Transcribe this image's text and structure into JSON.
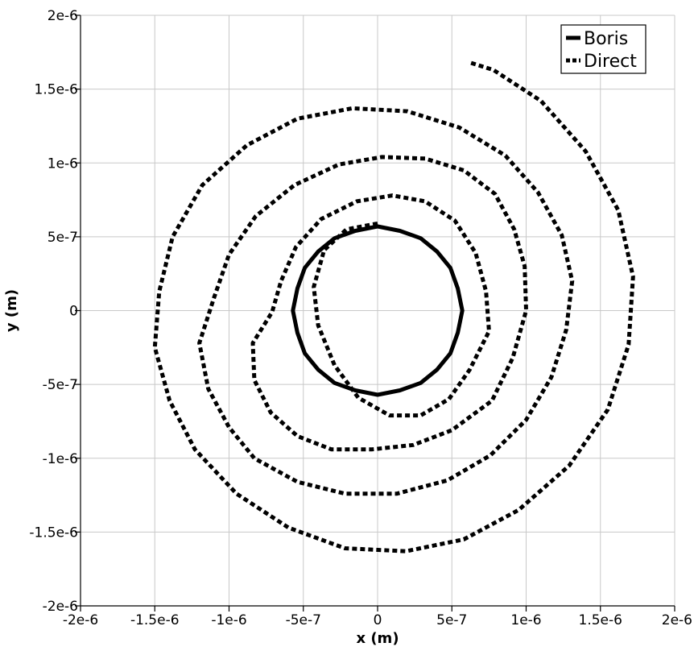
{
  "chart_data": {
    "type": "line",
    "xlabel": "x (m)",
    "ylabel": "y (m)",
    "xlim": [
      -2e-06,
      2e-06
    ],
    "ylim": [
      -2e-06,
      2e-06
    ],
    "grid": true,
    "legend_position": "top-right",
    "x_ticks": [
      -2e-06,
      -1.5e-06,
      -1e-06,
      -5e-07,
      0,
      5e-07,
      1e-06,
      1.5e-06,
      2e-06
    ],
    "x_tick_labels": [
      "-2e-6",
      "-1.5e-6",
      "-1e-6",
      "-5e-7",
      "0",
      "5e-7",
      "1e-6",
      "1.5e-6",
      "2e-6"
    ],
    "y_ticks": [
      -2e-06,
      -1.5e-06,
      -1e-06,
      -5e-07,
      0,
      5e-07,
      1e-06,
      1.5e-06,
      2e-06
    ],
    "y_tick_labels": [
      "-2e-6",
      "-1.5e-6",
      "-1e-6",
      "-5e-7",
      "0",
      "5e-7",
      "1e-6",
      "1.5e-6",
      "2e-6"
    ],
    "series": [
      {
        "name": "Boris",
        "style": "solid",
        "color": "#000000",
        "x": [
          5.7e-07,
          5.4e-07,
          4.9e-07,
          4e-07,
          2.9e-07,
          1.5e-07,
          0,
          -1.5e-07,
          -2.9e-07,
          -4e-07,
          -4.9e-07,
          -5.4e-07,
          -5.7e-07,
          -5.4e-07,
          -4.9e-07,
          -4e-07,
          -2.9e-07,
          -1.5e-07,
          0,
          1.5e-07,
          2.9e-07,
          4e-07,
          4.9e-07,
          5.4e-07,
          5.7e-07
        ],
        "y": [
          0,
          1.5e-07,
          2.9e-07,
          4e-07,
          4.9e-07,
          5.4e-07,
          5.7e-07,
          5.4e-07,
          4.9e-07,
          4e-07,
          2.9e-07,
          1.5e-07,
          0,
          -1.5e-07,
          -2.9e-07,
          -4e-07,
          -4.9e-07,
          -5.4e-07,
          -5.7e-07,
          -5.4e-07,
          -4.9e-07,
          -4e-07,
          -2.9e-07,
          -1.5e-07,
          0
        ]
      },
      {
        "name": "Direct",
        "style": "dashed",
        "color": "#000000",
        "x": [
          0,
          -2.1e-07,
          -3.6e-07,
          -4.3e-07,
          -4e-07,
          -2.9e-07,
          -1.3e-07,
          8e-08,
          2.9e-07,
          4.8e-07,
          6.2e-07,
          7.5e-07,
          7.3e-07,
          6.6e-07,
          5.2e-07,
          3.2e-07,
          1e-07,
          -1.4e-07,
          -3.8e-07,
          -5.5e-07,
          -6.5e-07,
          -7.1e-07,
          -8.4e-07,
          -8.3e-07,
          -7.2e-07,
          -5.4e-07,
          -3.1e-07,
          -4e-08,
          2.4e-07,
          5e-07,
          7.7e-07,
          9.1e-07,
          1e-06,
          9.9e-07,
          9.2e-07,
          7.9e-07,
          5.8e-07,
          3.2e-07,
          3e-08,
          -2.6e-07,
          -5.6e-07,
          -8.2e-07,
          -1e-06,
          -1.1e-06,
          -1.2e-06,
          -1.14e-06,
          -1e-06,
          -8.3e-07,
          -5.4e-07,
          -2.2e-07,
          1.3e-07,
          4.7e-07,
          7.6e-07,
          1e-06,
          1.17e-06,
          1.27e-06,
          1.31e-06,
          1.24e-06,
          1.08e-06,
          8.6e-07,
          5.5e-07,
          2e-07,
          -1.7e-07,
          -5.4e-07,
          -8.8e-07,
          -1.18e-06,
          -1.38e-06,
          -1.47e-06,
          -1.5e-06,
          -1.4e-06,
          -1.23e-06,
          -9.5e-07,
          -6e-07,
          -2.2e-07,
          1.9e-07,
          5.8e-07,
          9.5e-07,
          1.29e-06,
          1.55e-06,
          1.69e-06,
          1.72e-06,
          1.62e-06,
          1.4e-06,
          1.1e-06,
          7.8e-07,
          6.2e-07
        ],
        "y": [
          5.9e-07,
          5.5e-07,
          4.1e-07,
          1.6e-07,
          -1e-07,
          -3.7e-07,
          -5.9e-07,
          -7.1e-07,
          -7.1e-07,
          -6e-07,
          -4e-07,
          -1.4e-07,
          1.3e-07,
          3.9e-07,
          6.1e-07,
          7.4e-07,
          7.8e-07,
          7.4e-07,
          6.2e-07,
          4.3e-07,
          2e-07,
          -1e-08,
          -2.2e-07,
          -4.7e-07,
          -6.9e-07,
          -8.5e-07,
          -9.4e-07,
          -9.4e-07,
          -9.1e-07,
          -8.1e-07,
          -6.1e-07,
          -3.2e-07,
          0,
          3e-07,
          5.5e-07,
          7.9e-07,
          9.5e-07,
          1.03e-06,
          1.04e-06,
          9.9e-07,
          8.5e-07,
          6.4e-07,
          3.8e-07,
          9e-08,
          -2.2e-07,
          -5.3e-07,
          -7.9e-07,
          -1e-06,
          -1.16e-06,
          -1.24e-06,
          -1.24e-06,
          -1.15e-06,
          -9.8e-07,
          -7.4e-07,
          -4.5e-07,
          -1.3e-07,
          2e-07,
          5.1e-07,
          8e-07,
          1.05e-06,
          1.24e-06,
          1.35e-06,
          1.37e-06,
          1.3e-06,
          1.12e-06,
          8.5e-07,
          5e-07,
          1.3e-07,
          -2.5e-07,
          -6.1e-07,
          -9.4e-07,
          -1.24e-06,
          -1.47e-06,
          -1.61e-06,
          -1.63e-06,
          -1.55e-06,
          -1.35e-06,
          -1.05e-06,
          -6.7e-07,
          -2.3e-07,
          2.3e-07,
          6.8e-07,
          1.08e-06,
          1.42e-06,
          1.63e-06,
          1.68e-06
        ]
      }
    ]
  }
}
